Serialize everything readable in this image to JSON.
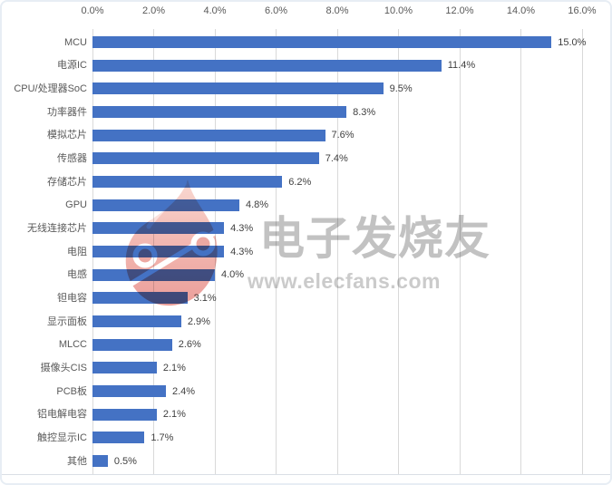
{
  "watermark": {
    "title": "电子发烧友",
    "url": "www.elecfans.com",
    "text_color": "#c2c2c2",
    "flame_color_top": "#f9d8d1",
    "flame_color_bottom": "#ea9a95"
  },
  "chart_data": {
    "type": "bar",
    "orientation": "horizontal",
    "title": "",
    "xlabel": "",
    "ylabel": "",
    "xlim": [
      0,
      16
    ],
    "grid": true,
    "axis_ticks": [
      "0.0%",
      "2.0%",
      "4.0%",
      "6.0%",
      "8.0%",
      "10.0%",
      "12.0%",
      "14.0%",
      "16.0%"
    ],
    "categories": [
      "MCU",
      "电源IC",
      "CPU/处理器SoC",
      "功率器件",
      "模拟芯片",
      "传感器",
      "存储芯片",
      "GPU",
      "无线连接芯片",
      "电阻",
      "电感",
      "钽电容",
      "显示面板",
      "MLCC",
      "摄像头CIS",
      "PCB板",
      "铝电解电容",
      "触控显示IC",
      "其他"
    ],
    "values": [
      15.0,
      11.4,
      9.5,
      8.3,
      7.6,
      7.4,
      6.2,
      4.8,
      4.3,
      4.3,
      4.0,
      3.1,
      2.9,
      2.6,
      2.1,
      2.4,
      2.1,
      1.7,
      0.5
    ],
    "value_labels": [
      "15.0%",
      "11.4%",
      "9.5%",
      "8.3%",
      "7.6%",
      "7.4%",
      "6.2%",
      "4.8%",
      "4.3%",
      "4.3%",
      "4.0%",
      "3.1%",
      "2.9%",
      "2.6%",
      "2.1%",
      "2.4%",
      "2.1%",
      "1.7%",
      "0.5%"
    ],
    "bar_color": "#4472C4",
    "gridline_color": "#d9d9d9",
    "label_color": "#595959",
    "value_color": "#3f3f3f",
    "legend": false
  }
}
